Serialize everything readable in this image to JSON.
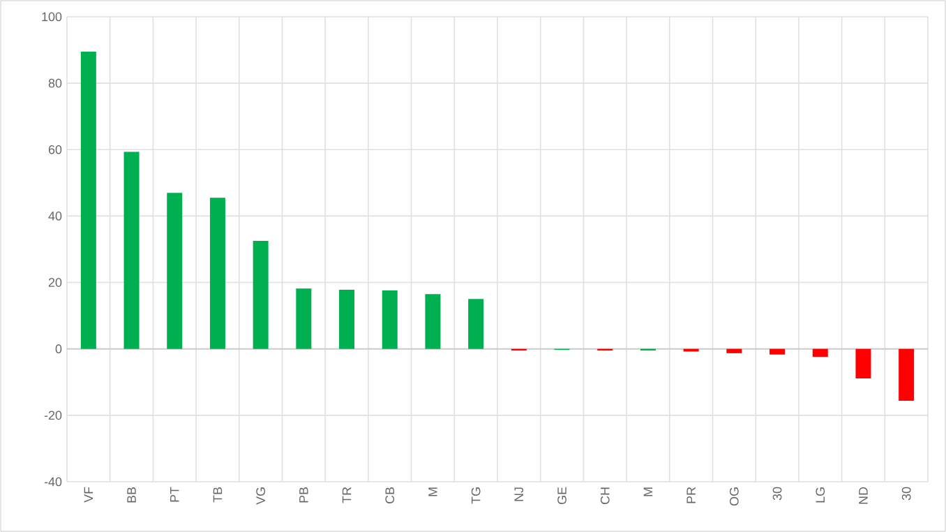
{
  "chart_data": {
    "type": "bar",
    "categories": [
      "VF",
      "BB",
      "PT",
      "TB",
      "VG",
      "PB",
      "TR",
      "CB",
      "M",
      "TG",
      "NJ",
      "GE",
      "CH",
      "M",
      "PR",
      "OG",
      "30",
      "LG",
      "ND",
      "30"
    ],
    "values": [
      89.5,
      59.3,
      47,
      45.5,
      32.5,
      18.2,
      17.8,
      17.6,
      16.5,
      15,
      -0.5,
      -0.3,
      -0.5,
      -0.5,
      -0.8,
      -1.3,
      -1.7,
      -2.4,
      -8.9,
      -15.6
    ],
    "colors": [
      "#00b050",
      "#00b050",
      "#00b050",
      "#00b050",
      "#00b050",
      "#00b050",
      "#00b050",
      "#00b050",
      "#00b050",
      "#00b050",
      "#ff0000",
      "#00b050",
      "#ff0000",
      "#00b050",
      "#ff0000",
      "#ff0000",
      "#ff0000",
      "#ff0000",
      "#ff0000",
      "#ff0000"
    ],
    "ylim": [
      -40,
      100
    ],
    "yticks": [
      -40,
      -20,
      0,
      20,
      40,
      60,
      80,
      100
    ],
    "grid": true
  }
}
